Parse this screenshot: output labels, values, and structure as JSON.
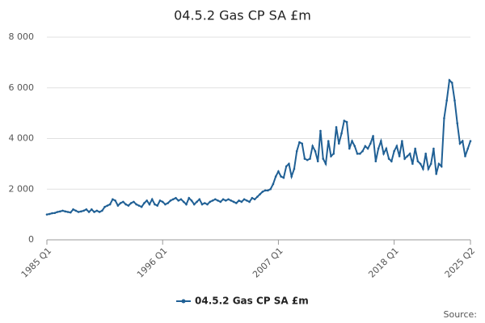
{
  "chart_data": {
    "type": "line",
    "title": "04.5.2 Gas CP SA £m",
    "source": "Source:",
    "categories": [
      "1985 Q1",
      null,
      null,
      null,
      null,
      null,
      null,
      null,
      null,
      null,
      null,
      null,
      null,
      null,
      null,
      null,
      null,
      null,
      null,
      null,
      null,
      null,
      null,
      null,
      null,
      null,
      null,
      null,
      null,
      null,
      null,
      null,
      null,
      null,
      null,
      null,
      null,
      null,
      null,
      null,
      null,
      null,
      null,
      null,
      "1996 Q1",
      null,
      null,
      null,
      null,
      null,
      null,
      null,
      null,
      null,
      null,
      null,
      null,
      null,
      null,
      null,
      null,
      null,
      null,
      null,
      null,
      null,
      null,
      null,
      null,
      null,
      null,
      null,
      null,
      null,
      null,
      null,
      null,
      null,
      null,
      null,
      null,
      null,
      null,
      null,
      null,
      null,
      null,
      null,
      "2007 Q1",
      null,
      null,
      null,
      null,
      null,
      null,
      null,
      null,
      null,
      null,
      null,
      null,
      null,
      null,
      null,
      null,
      null,
      null,
      null,
      null,
      null,
      null,
      null,
      null,
      null,
      null,
      null,
      null,
      null,
      null,
      null,
      null,
      null,
      null,
      null,
      null,
      null,
      null,
      null,
      null,
      null,
      null,
      null,
      "2018 Q1",
      null,
      null,
      null,
      null,
      null,
      null,
      null,
      null,
      null,
      null,
      null,
      null,
      null,
      null,
      null,
      null,
      null,
      null,
      null,
      null,
      null,
      null,
      null,
      null,
      null,
      null,
      null,
      null,
      "2025 Q2"
    ],
    "series": [
      {
        "name": "04.5.2 Gas CP SA £m",
        "color": "#206095",
        "values": [
          1000,
          1020,
          1050,
          1060,
          1100,
          1120,
          1150,
          1120,
          1100,
          1080,
          1200,
          1150,
          1100,
          1120,
          1150,
          1200,
          1100,
          1200,
          1100,
          1150,
          1100,
          1150,
          1300,
          1350,
          1400,
          1600,
          1550,
          1350,
          1450,
          1500,
          1400,
          1350,
          1450,
          1500,
          1400,
          1350,
          1300,
          1450,
          1550,
          1400,
          1600,
          1400,
          1350,
          1550,
          1500,
          1400,
          1450,
          1550,
          1600,
          1650,
          1550,
          1600,
          1500,
          1400,
          1650,
          1550,
          1400,
          1500,
          1600,
          1400,
          1450,
          1400,
          1500,
          1550,
          1600,
          1550,
          1500,
          1600,
          1550,
          1600,
          1550,
          1500,
          1450,
          1550,
          1500,
          1600,
          1550,
          1500,
          1650,
          1600,
          1700,
          1800,
          1900,
          1950,
          1950,
          2000,
          2200,
          2500,
          2700,
          2500,
          2450,
          2900,
          3000,
          2500,
          2800,
          3500,
          3850,
          3800,
          3200,
          3150,
          3200,
          3700,
          3500,
          3100,
          4300,
          3200,
          3000,
          3900,
          3300,
          3400,
          4450,
          3800,
          4200,
          4700,
          4650,
          3600,
          3900,
          3700,
          3400,
          3400,
          3500,
          3700,
          3600,
          3800,
          4100,
          3100,
          3600,
          3900,
          3400,
          3600,
          3200,
          3100,
          3500,
          3700,
          3300,
          3900,
          3200,
          3300,
          3400,
          3000,
          3600,
          3100,
          3000,
          2800,
          3400,
          2800,
          3000,
          3600,
          2600,
          3000,
          2900,
          4800,
          5500,
          6300,
          6200,
          5500,
          4600,
          3800,
          3900,
          3300,
          3600,
          3900
        ]
      }
    ],
    "ylim": [
      0,
      8000
    ],
    "yticks": [
      0,
      {
        "value": 2000,
        "label": "2 000"
      },
      {
        "value": 4000,
        "label": "4 000"
      },
      {
        "value": 6000,
        "label": "6 000"
      },
      {
        "value": 8000,
        "label": "8 000"
      }
    ],
    "grid": true
  }
}
